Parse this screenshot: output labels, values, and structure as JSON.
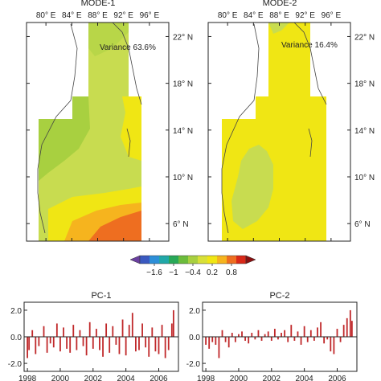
{
  "chart_data": [
    {
      "type": "heatmap",
      "title": "MODE-1",
      "annotation": "Variance 63.6%",
      "x_ticks": [
        "80° E",
        "84° E",
        "88° E",
        "92° E",
        "96° E"
      ],
      "y_ticks": [
        "22° N",
        "18° N",
        "14° N",
        "10° N",
        "6° N"
      ],
      "xlim": [
        77,
        99
      ],
      "ylim": [
        4.5,
        23.2
      ],
      "dominant_color": "#c8dc50"
    },
    {
      "type": "heatmap",
      "title": "MODE-2",
      "annotation": "Variance 16.4%",
      "x_ticks": [
        "80° E",
        "84° E",
        "88° E",
        "92° E",
        "96° E"
      ],
      "y_ticks": [
        "22° N",
        "18° N",
        "14° N",
        "10° N",
        "6° N"
      ],
      "xlim": [
        77,
        99
      ],
      "ylim": [
        4.5,
        23.2
      ],
      "dominant_color": "#f0e614"
    }
  ],
  "colorbar": {
    "tick_labels": [
      "−1.6",
      "−1",
      "−0.4",
      "0.2",
      "0.8"
    ],
    "colors": [
      "#6a3fa0",
      "#3a59c0",
      "#2d8fd8",
      "#21a8a8",
      "#28a858",
      "#6cbc3c",
      "#a8d040",
      "#d8e038",
      "#f0e614",
      "#f6b41e",
      "#ee6e20",
      "#d92818",
      "#8a1010"
    ]
  },
  "timeseries": [
    {
      "type": "bar",
      "title": "PC-1",
      "ylim": [
        -2.6,
        2.6
      ],
      "y_ticks": [
        "2.0",
        "0.0",
        "-2.0"
      ],
      "x_ticks": [
        "1998",
        "2000",
        "2002",
        "2004",
        "2006"
      ],
      "color": "#c0282a",
      "x": [
        1998.0,
        1998.1,
        1998.3,
        1998.5,
        1998.7,
        1999.0,
        1999.2,
        1999.4,
        1999.6,
        1999.8,
        2000.0,
        2000.2,
        2000.4,
        2000.6,
        2000.8,
        2001.0,
        2001.2,
        2001.4,
        2001.6,
        2001.8,
        2002.0,
        2002.2,
        2002.4,
        2002.6,
        2002.8,
        2003.0,
        2003.2,
        2003.4,
        2003.6,
        2003.8,
        2004.0,
        2004.2,
        2004.4,
        2004.6,
        2004.8,
        2005.0,
        2005.2,
        2005.4,
        2005.6,
        2005.8,
        2006.0,
        2006.2,
        2006.4,
        2006.6,
        2006.8,
        2006.9
      ],
      "values": [
        -1.6,
        -1.0,
        0.5,
        -1.3,
        -0.7,
        0.8,
        -1.2,
        -0.5,
        -0.8,
        1.0,
        -1.1,
        0.7,
        -0.9,
        -1.2,
        0.9,
        -1.0,
        0.5,
        -0.7,
        -1.4,
        1.1,
        -0.9,
        0.6,
        -1.0,
        -1.5,
        1.0,
        -1.2,
        0.8,
        -0.6,
        -1.3,
        1.3,
        -1.4,
        0.9,
        1.8,
        -1.1,
        -1.0,
        1.0,
        -0.8,
        -1.5,
        0.7,
        -1.1,
        -1.3,
        0.9,
        -1.6,
        -1.0,
        1.0,
        2.0
      ]
    },
    {
      "type": "bar",
      "title": "PC-2",
      "ylim": [
        -2.6,
        2.6
      ],
      "y_ticks": [
        "2.0",
        "0.0",
        "-2.0"
      ],
      "x_ticks": [
        "1998",
        "2000",
        "2002",
        "2004",
        "2006"
      ],
      "color": "#c0282a",
      "x": [
        1998.0,
        1998.2,
        1998.4,
        1998.6,
        1998.8,
        1999.0,
        1999.2,
        1999.4,
        1999.6,
        1999.8,
        2000.0,
        2000.2,
        2000.4,
        2000.6,
        2000.8,
        2001.0,
        2001.2,
        2001.4,
        2001.6,
        2001.8,
        2002.0,
        2002.2,
        2002.4,
        2002.6,
        2002.8,
        2003.0,
        2003.2,
        2003.4,
        2003.6,
        2003.8,
        2004.0,
        2004.2,
        2004.4,
        2004.6,
        2004.8,
        2005.0,
        2005.2,
        2005.4,
        2005.6,
        2005.8,
        2006.0,
        2006.2,
        2006.4,
        2006.6,
        2006.8,
        2006.9
      ],
      "values": [
        -0.6,
        -0.9,
        -0.4,
        -0.6,
        -1.6,
        0.5,
        -0.4,
        -0.8,
        0.3,
        -0.4,
        0.2,
        0.4,
        -0.3,
        -0.5,
        0.3,
        -0.2,
        0.5,
        -0.3,
        0.2,
        0.4,
        -0.3,
        0.6,
        -0.2,
        0.3,
        0.5,
        -0.4,
        0.9,
        -0.3,
        0.4,
        -0.6,
        0.8,
        -0.4,
        0.5,
        -0.3,
        0.7,
        1.1,
        -0.5,
        -0.2,
        -1.1,
        -1.3,
        0.6,
        -0.4,
        0.9,
        1.4,
        2.0,
        1.2
      ]
    }
  ]
}
